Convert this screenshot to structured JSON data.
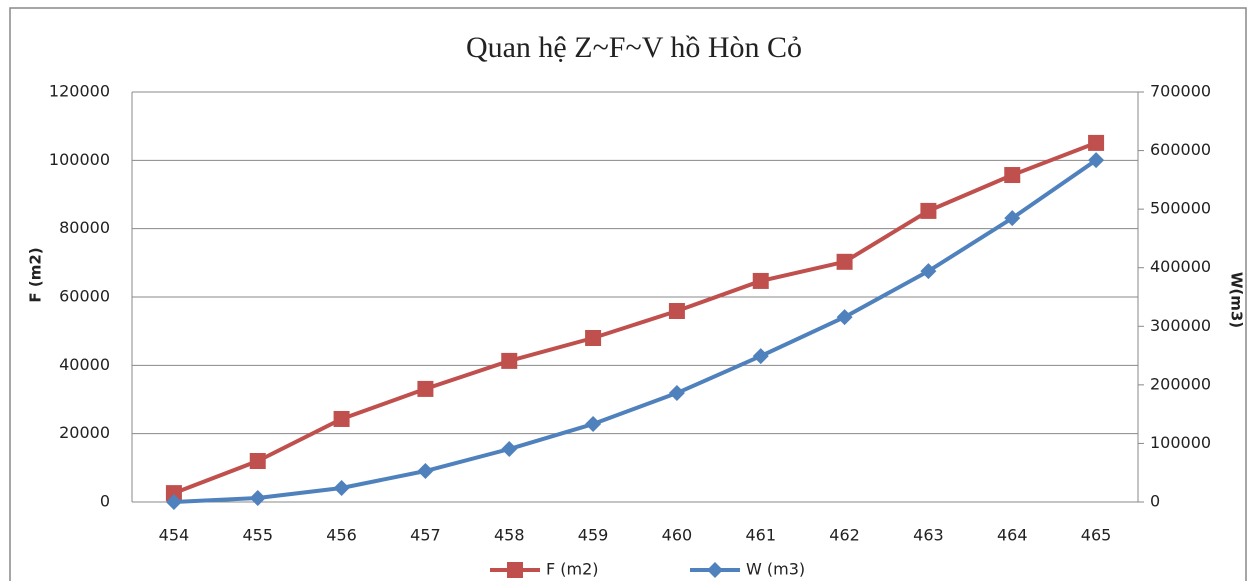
{
  "chart_data": {
    "type": "line",
    "title": "Quan hệ Z~F~V hồ Hòn Cỏ",
    "y_label": "F (m2)",
    "y2_label": "W(m3)",
    "categories": [
      "454",
      "455",
      "456",
      "457",
      "458",
      "459",
      "460",
      "461",
      "462",
      "463",
      "464",
      "465"
    ],
    "series": [
      {
        "name": "F (m2)",
        "color": "#c0504d",
        "marker": "square",
        "values": [
          2600,
          12000,
          24300,
          33100,
          41300,
          48000,
          55900,
          64700,
          70300,
          85200,
          95700,
          105100
        ]
      },
      {
        "name": "W (m3)",
        "color": "#4f81bd",
        "marker": "diamond",
        "axis": "y2",
        "values": [
          0,
          6800,
          23900,
          52900,
          90400,
          133100,
          186000,
          249100,
          315700,
          394200,
          484600,
          583600
        ]
      }
    ],
    "ylim": [
      0,
      120000
    ],
    "yticks": [
      0,
      20000,
      40000,
      60000,
      80000,
      100000,
      120000
    ],
    "y2lim": [
      0,
      700000
    ],
    "y2ticks": [
      0,
      100000,
      200000,
      300000,
      400000,
      500000,
      600000,
      700000
    ],
    "grid": true,
    "legend": "bottom"
  }
}
